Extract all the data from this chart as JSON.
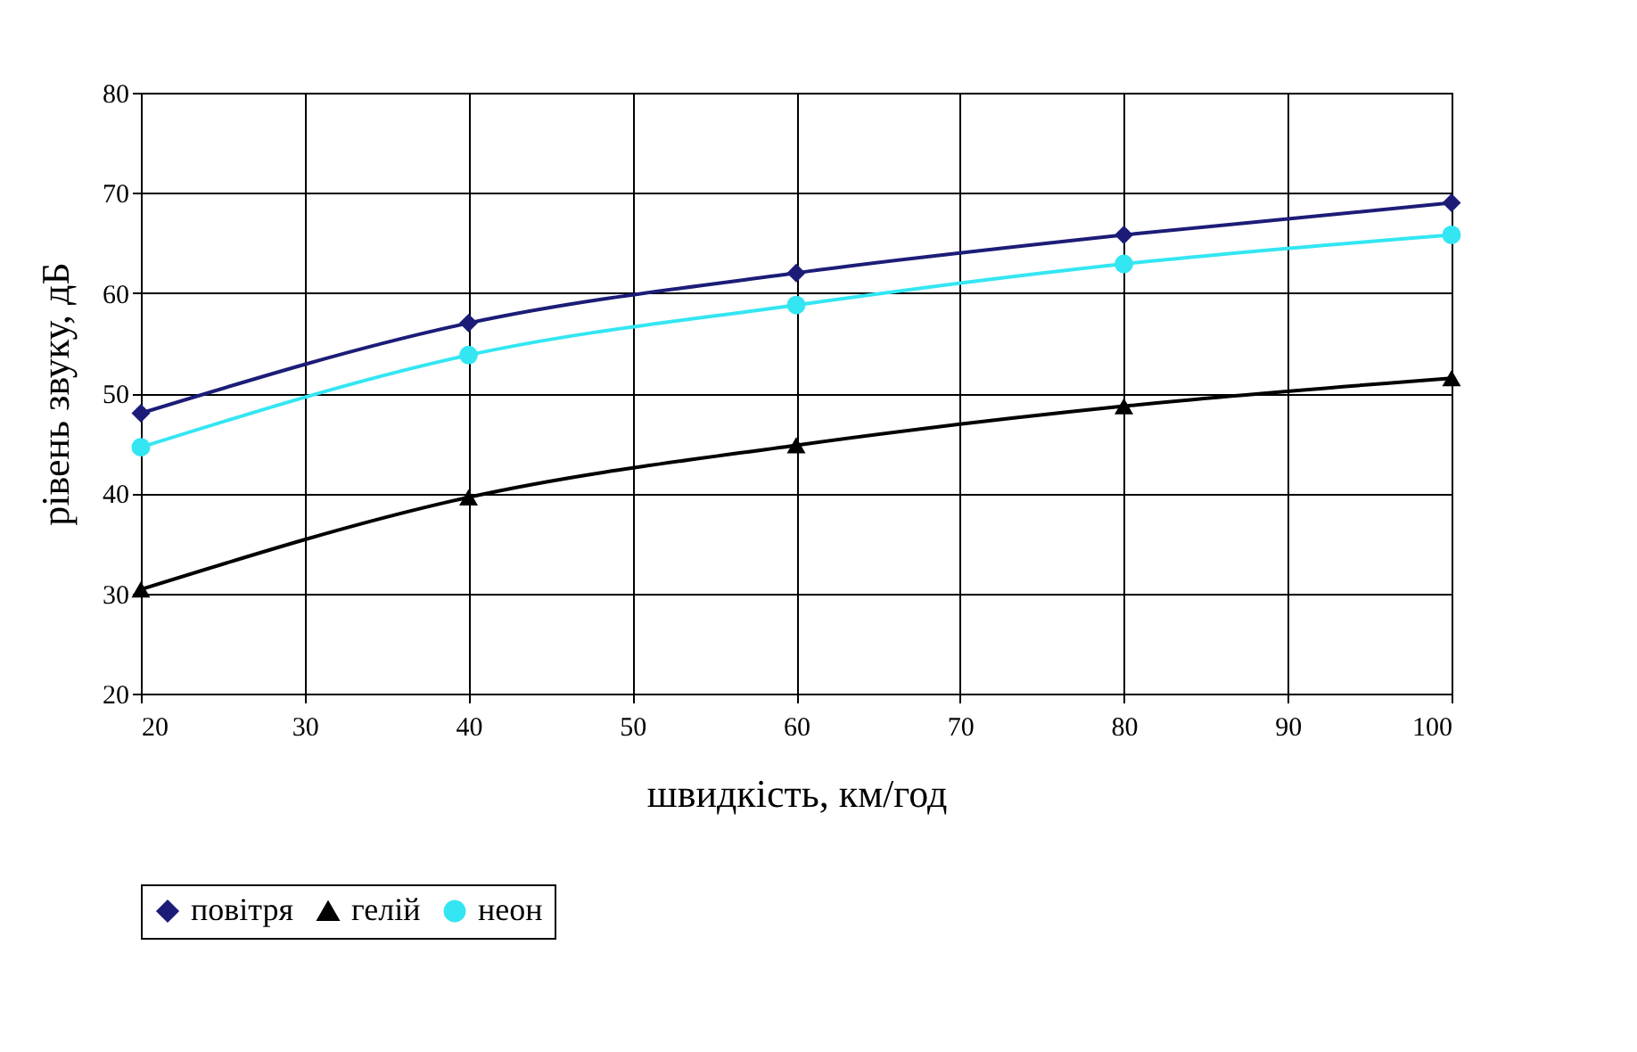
{
  "chart_data": {
    "type": "line",
    "xlabel": "швидкість, км/год",
    "ylabel": "рівень звуку, дБ",
    "x": [
      20,
      40,
      60,
      80,
      100
    ],
    "series": [
      {
        "name": "повітря",
        "color": "#1c1c78",
        "marker": "diamond",
        "values": [
          48,
          57,
          62,
          65.8,
          69
        ]
      },
      {
        "name": "гелій",
        "color": "#000000",
        "marker": "triangle",
        "values": [
          30.4,
          39.6,
          44.8,
          48.7,
          51.5
        ]
      },
      {
        "name": "неон",
        "color": "#33e6f2",
        "marker": "circle",
        "values": [
          44.6,
          53.8,
          58.8,
          62.9,
          65.8
        ]
      }
    ],
    "xlim": [
      20,
      100
    ],
    "xticks": [
      20,
      30,
      40,
      50,
      60,
      70,
      80,
      90,
      100
    ],
    "ylim": [
      20,
      80
    ],
    "yticks": [
      20,
      30,
      40,
      50,
      60,
      70,
      80
    ],
    "grid": true,
    "legend": "bottom",
    "line_style": "solid"
  }
}
